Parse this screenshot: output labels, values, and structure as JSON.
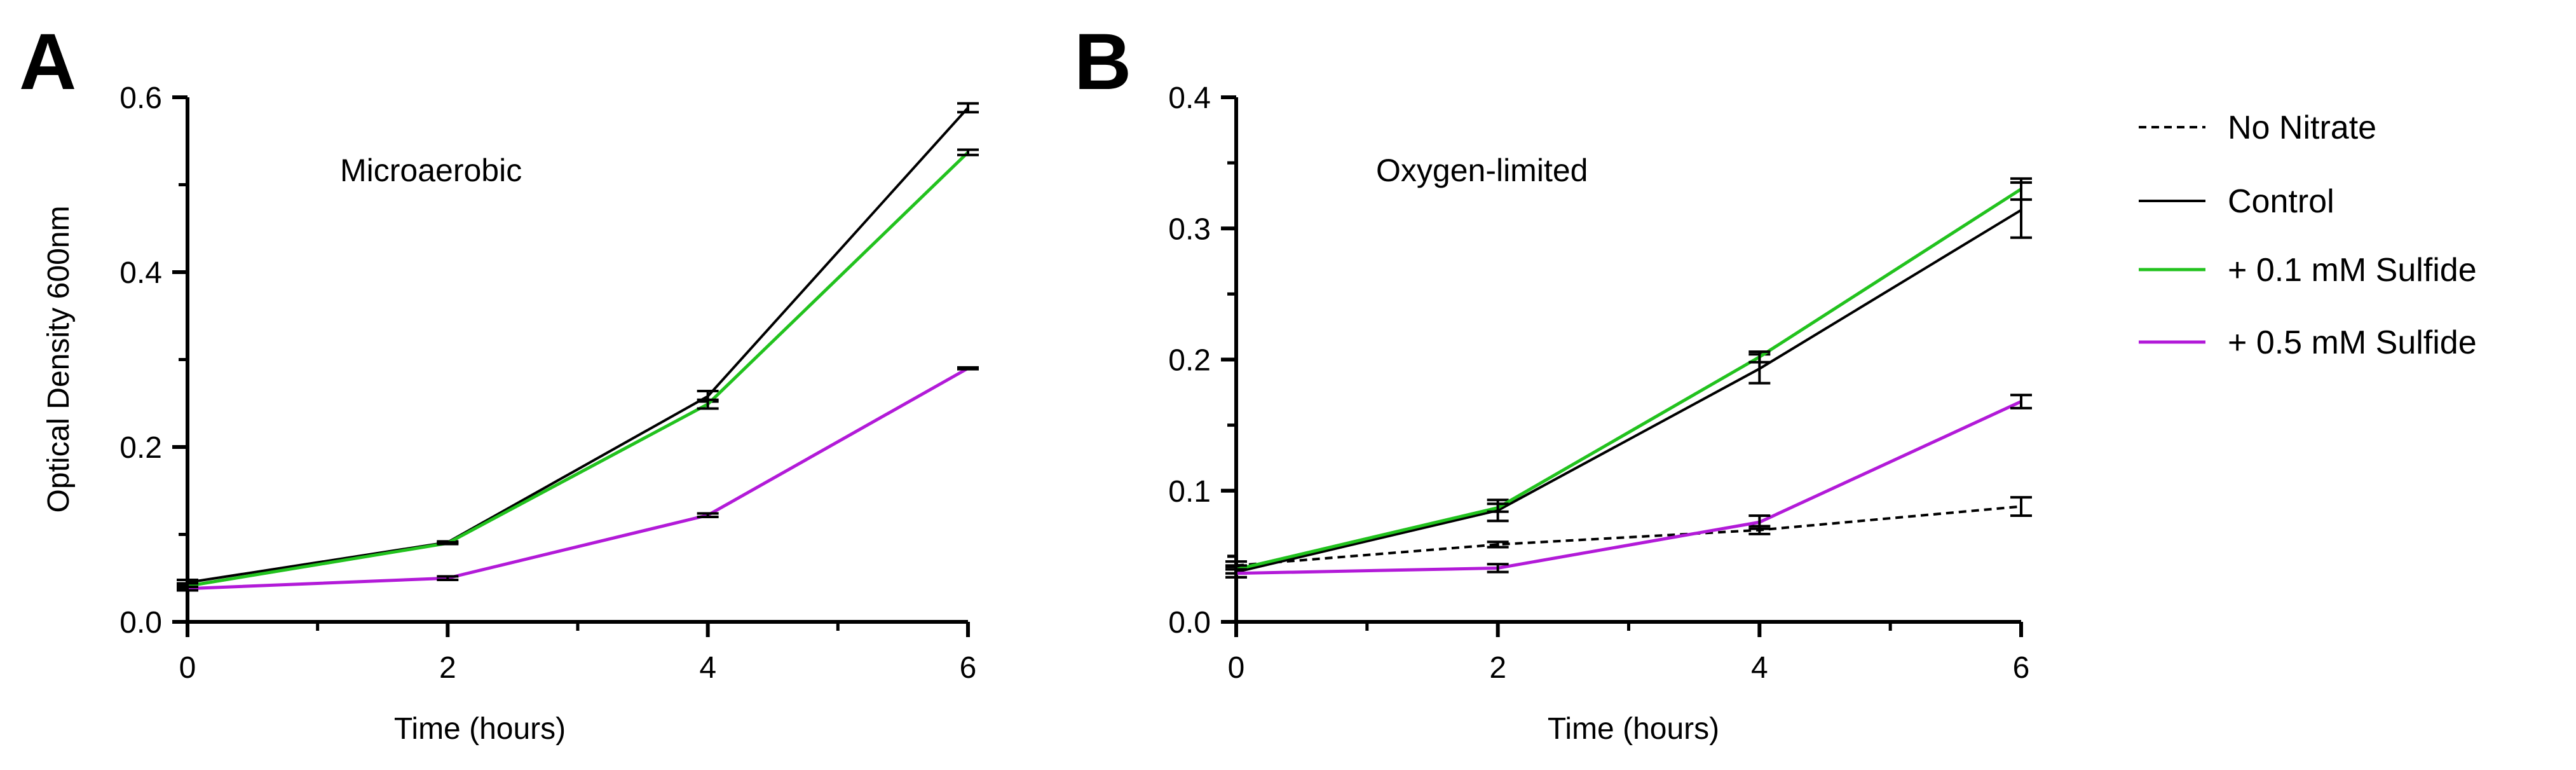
{
  "chart_data": [
    {
      "type": "line",
      "panel_label": "A",
      "annotation": "Microaerobic",
      "xlabel": "Time (hours)",
      "ylabel": "Optical Density 600nm",
      "xlim": [
        0,
        6
      ],
      "ylim": [
        0,
        0.6
      ],
      "xticks": [
        0,
        2,
        4,
        6
      ],
      "yticks": [
        0.0,
        0.2,
        0.4,
        0.6
      ],
      "ytick_labels": [
        "0.0",
        "0.2",
        "0.4",
        "0.6"
      ],
      "x": [
        0,
        2,
        4,
        6
      ],
      "series": [
        {
          "name": "Control",
          "color": "#000000",
          "dashed": false,
          "values": [
            0.045,
            0.091,
            0.258,
            0.588
          ],
          "errors": [
            0.003,
            0.001,
            0.006,
            0.005
          ]
        },
        {
          "name": "+ 0.1 mM Sulfide",
          "color": "#22c21e",
          "dashed": false,
          "values": [
            0.041,
            0.09,
            0.249,
            0.537
          ],
          "errors": [
            0.003,
            0.001,
            0.005,
            0.003
          ]
        },
        {
          "name": "+ 0.5 mM Sulfide",
          "color": "#b21ad8",
          "dashed": false,
          "values": [
            0.038,
            0.05,
            0.122,
            0.29
          ],
          "errors": [
            0.002,
            0.002,
            0.002,
            0.001
          ]
        }
      ]
    },
    {
      "type": "line",
      "panel_label": "B",
      "annotation": "Oxygen-limited",
      "xlabel": "Time (hours)",
      "ylabel": "",
      "xlim": [
        0,
        6
      ],
      "ylim": [
        0,
        0.4
      ],
      "xticks": [
        0,
        2,
        4,
        6
      ],
      "yticks": [
        0.0,
        0.1,
        0.2,
        0.3,
        0.4
      ],
      "ytick_labels": [
        "0.0",
        "0.1",
        "0.2",
        "0.3",
        "0.4"
      ],
      "x": [
        0,
        2,
        4,
        6
      ],
      "series": [
        {
          "name": "No Nitrate",
          "color": "#000000",
          "dashed": true,
          "values": [
            0.043,
            0.059,
            0.07,
            0.088
          ],
          "errors": [
            0.003,
            0.002,
            0.003,
            0.007
          ]
        },
        {
          "name": "Control",
          "color": "#000000",
          "dashed": false,
          "values": [
            0.038,
            0.085,
            0.193,
            0.314
          ],
          "errors": [
            0.004,
            0.008,
            0.011,
            0.021
          ]
        },
        {
          "name": "+ 0.1 mM Sulfide",
          "color": "#22c21e",
          "dashed": false,
          "values": [
            0.04,
            0.087,
            0.202,
            0.33
          ],
          "errors": [
            0.003,
            0.003,
            0.004,
            0.008
          ]
        },
        {
          "name": "+ 0.5 mM Sulfide",
          "color": "#b21ad8",
          "dashed": false,
          "values": [
            0.037,
            0.041,
            0.076,
            0.168
          ],
          "errors": [
            0.003,
            0.003,
            0.005,
            0.005
          ]
        }
      ]
    }
  ],
  "legend": [
    {
      "label": "No Nitrate",
      "color": "#000000",
      "dashed": true
    },
    {
      "label": "Control",
      "color": "#000000",
      "dashed": false
    },
    {
      "label": "+ 0.1 mM Sulfide",
      "color": "#22c21e",
      "dashed": false
    },
    {
      "label": "+ 0.5 mM Sulfide",
      "color": "#b21ad8",
      "dashed": false
    }
  ]
}
